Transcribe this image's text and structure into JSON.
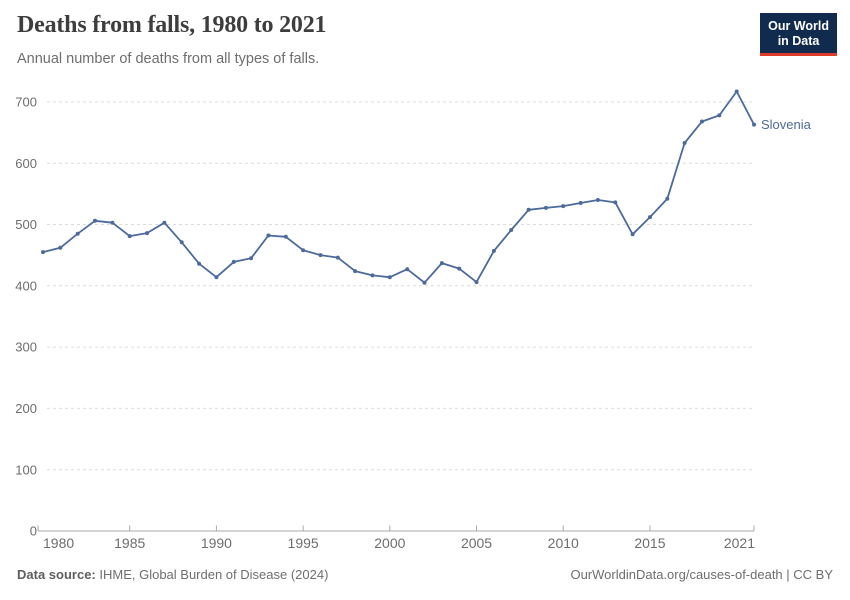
{
  "header": {
    "title": "Deaths from falls, 1980 to 2021",
    "subtitle": "Annual number of deaths from all types of falls.",
    "logo": {
      "line1": "Our World",
      "line2": "in Data"
    }
  },
  "footer": {
    "source_label": "Data source:",
    "source_text": " IHME, Global Burden of Disease (2024)",
    "credit": "OurWorldinData.org/causes-of-death | CC BY"
  },
  "chart_data": {
    "type": "line",
    "title": "Deaths from falls, 1980 to 2021",
    "subtitle": "Annual number of deaths from all types of falls.",
    "series_label": "Slovenia",
    "x": [
      1980,
      1981,
      1982,
      1983,
      1984,
      1985,
      1986,
      1987,
      1988,
      1989,
      1990,
      1991,
      1992,
      1993,
      1994,
      1995,
      1996,
      1997,
      1998,
      1999,
      2000,
      2001,
      2002,
      2003,
      2004,
      2005,
      2006,
      2007,
      2008,
      2009,
      2010,
      2011,
      2012,
      2013,
      2014,
      2015,
      2016,
      2017,
      2018,
      2019,
      2020,
      2021
    ],
    "values": [
      455,
      462,
      485,
      506,
      503,
      481,
      486,
      503,
      471,
      436,
      414,
      439,
      445,
      482,
      480,
      458,
      450,
      446,
      424,
      417,
      414,
      427,
      405,
      437,
      428,
      406,
      457,
      491,
      524,
      527,
      530,
      535,
      540,
      536,
      484,
      512,
      542,
      633,
      668,
      678,
      717,
      663
    ],
    "xlabel": "",
    "ylabel": "",
    "ylim": [
      0,
      700
    ],
    "yticks": [
      0,
      100,
      200,
      300,
      400,
      500,
      600,
      700
    ],
    "xticks": [
      1980,
      1985,
      1990,
      1995,
      2000,
      2005,
      2010,
      2015,
      2021
    ],
    "grid": "horizontal-dashed",
    "legend_position": "end-of-line-label",
    "line_color": "#4c6a9c",
    "grid_color": "#dcdcdc",
    "axis_color": "#a8a8a8",
    "tick_label_color": "#6e6e6e"
  }
}
